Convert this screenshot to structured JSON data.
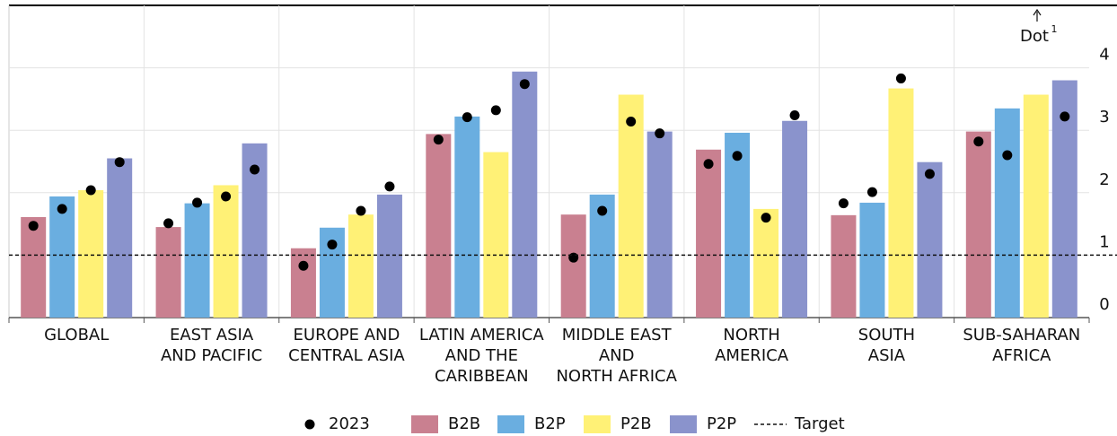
{
  "chart_data": {
    "type": "bar",
    "y_label": "Dot",
    "y_label_note": "1",
    "categories": [
      [
        "GLOBAL"
      ],
      [
        "EAST ASIA",
        "AND PACIFIC"
      ],
      [
        "EUROPE AND",
        "CENTRAL ASIA"
      ],
      [
        "LATIN AMERICA",
        "AND THE",
        "CARIBBEAN"
      ],
      [
        "MIDDLE EAST",
        "AND",
        "NORTH AFRICA"
      ],
      [
        "NORTH",
        "AMERICA"
      ],
      [
        "SOUTH",
        "ASIA"
      ],
      [
        "SUB-SAHARAN",
        "AFRICA"
      ]
    ],
    "series": [
      {
        "name": "B2B",
        "color": "#c98090",
        "values": [
          1.61,
          1.45,
          1.11,
          2.94,
          1.65,
          2.69,
          1.64,
          2.98
        ]
      },
      {
        "name": "B2P",
        "color": "#6aaee0",
        "values": [
          1.94,
          1.83,
          1.44,
          3.22,
          1.97,
          2.96,
          1.84,
          3.35
        ]
      },
      {
        "name": "P2B",
        "color": "#fff176",
        "values": [
          2.04,
          2.12,
          1.65,
          2.65,
          3.57,
          1.74,
          3.67,
          3.57
        ]
      },
      {
        "name": "P2P",
        "color": "#8a93cc",
        "values": [
          2.55,
          2.79,
          1.97,
          3.94,
          2.98,
          3.15,
          2.49,
          3.8
        ]
      }
    ],
    "dot_series": {
      "name": "2023",
      "color": "#000000",
      "values": [
        [
          1.47,
          1.74,
          2.04,
          2.49
        ],
        [
          1.51,
          1.84,
          1.94,
          2.37
        ],
        [
          0.83,
          1.17,
          1.71,
          2.1
        ],
        [
          2.85,
          3.21,
          3.32,
          3.74
        ],
        [
          0.96,
          1.71,
          3.14,
          2.95
        ],
        [
          2.46,
          2.59,
          1.6,
          3.24
        ],
        [
          1.83,
          2.01,
          3.83,
          2.3
        ],
        [
          2.82,
          2.6,
          null,
          3.22
        ]
      ]
    },
    "target": {
      "name": "Target",
      "value": 1
    },
    "ylim": [
      0,
      5
    ],
    "yticks": [
      0,
      1,
      2,
      3,
      4
    ],
    "grid": true
  }
}
